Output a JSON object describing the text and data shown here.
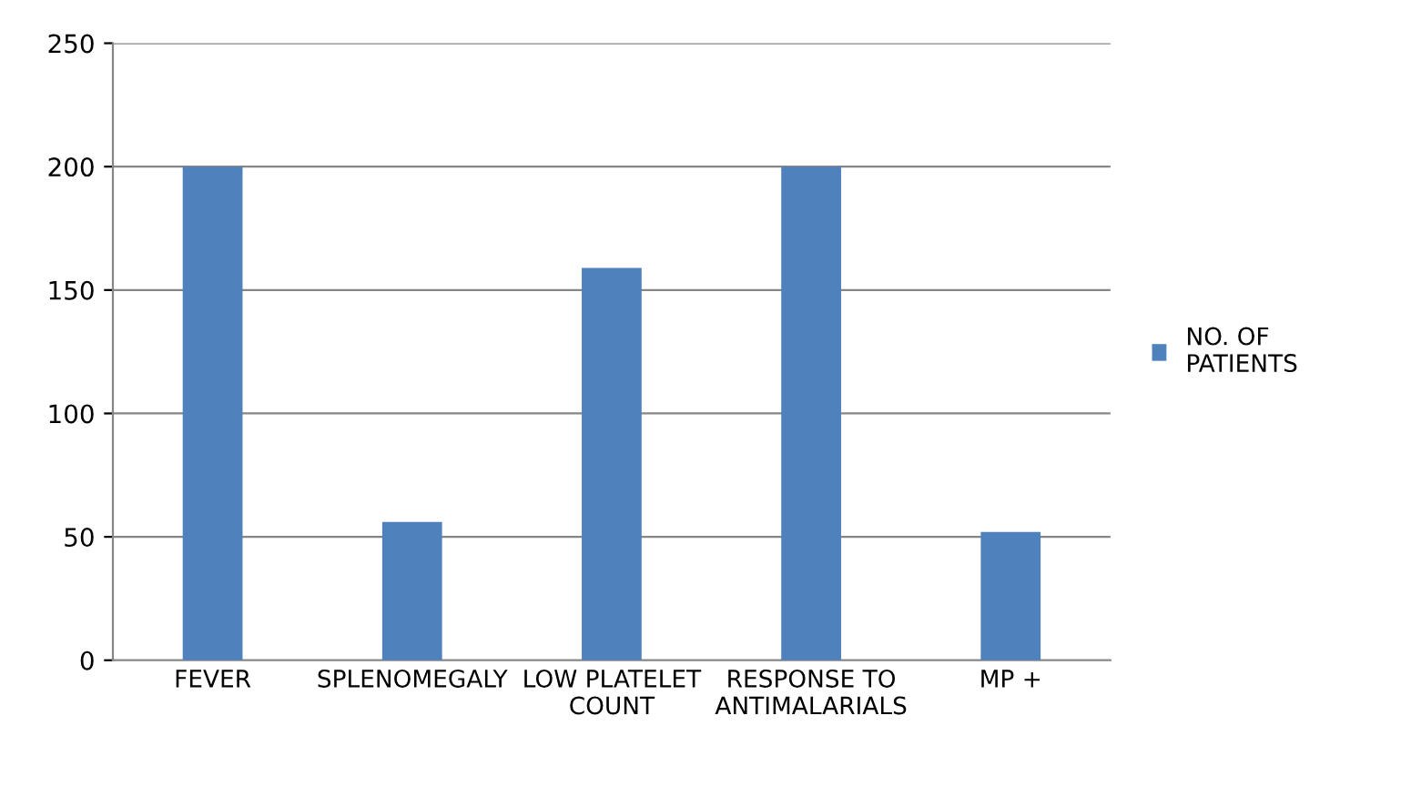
{
  "chart_data": {
    "type": "bar",
    "categories": [
      "FEVER",
      "SPLENOMEGALY",
      "LOW PLATELET COUNT",
      "RESPONSE TO ANTIMALARIALS",
      "MP +"
    ],
    "series": [
      {
        "name": "NO. OF PATIENTS",
        "color": "#4f81bd",
        "values": [
          200,
          56,
          159,
          200,
          52
        ]
      }
    ],
    "ylim": [
      0,
      250
    ],
    "yticks": [
      0,
      50,
      100,
      150,
      200,
      250
    ],
    "grid": "y",
    "legend": "right"
  }
}
